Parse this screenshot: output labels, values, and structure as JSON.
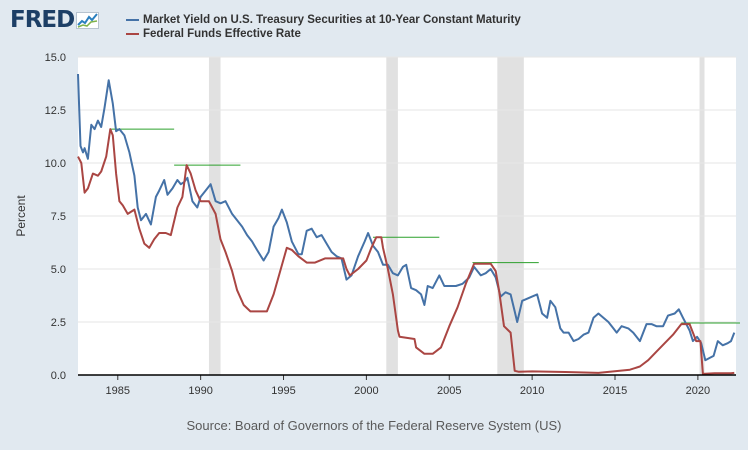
{
  "logo": {
    "text": "FRED",
    "icon": "line-chart-icon"
  },
  "legend": [
    {
      "label": "Market Yield on U.S. Treasury Securities at 10-Year Constant Maturity",
      "color": "#4572a7"
    },
    {
      "label": "Federal Funds Effective Rate",
      "color": "#aa4643"
    }
  ],
  "source": "Source: Board of Governors of the Federal Reserve System (US)",
  "colors": {
    "background": "#e1e9f0",
    "plot": "#ffffff",
    "recession": "#e1e1e1",
    "grid": "#e6e6e6",
    "trendline": "#2ca02c"
  },
  "chart_data": {
    "type": "line",
    "title": "",
    "xlabel": "",
    "ylabel": "Percent",
    "xlim": [
      1982.6,
      2022.3
    ],
    "ylim": [
      0,
      15
    ],
    "yticks": [
      "0.0",
      "2.5",
      "5.0",
      "7.5",
      "10.0",
      "12.5",
      "15.0"
    ],
    "xticks": [
      "1985",
      "1990",
      "1995",
      "2000",
      "2005",
      "2010",
      "2015",
      "2020"
    ],
    "grid": "horizontal",
    "legend_position": "top",
    "recessions": [
      [
        1990.5,
        1991.2
      ],
      [
        2001.2,
        2001.9
      ],
      [
        2007.9,
        2009.5
      ],
      [
        2020.1,
        2020.4
      ]
    ],
    "annotations": [
      {
        "x_start": 1984.6,
        "x_end": 1988.4,
        "y": 11.6
      },
      {
        "x_start": 1988.4,
        "x_end": 1992.4,
        "y": 9.9
      },
      {
        "x_start": 2000.4,
        "x_end": 2004.4,
        "y": 6.5
      },
      {
        "x_start": 2006.4,
        "x_end": 2010.4,
        "y": 5.3
      },
      {
        "x_start": 2019.0,
        "x_end": 2022.7,
        "y": 2.45
      }
    ],
    "series": [
      {
        "name": "Market Yield on U.S. Treasury Securities at 10-Year Constant Maturity",
        "color": "#4572a7",
        "x": [
          1982.6,
          1982.75,
          1982.9,
          1983.0,
          1983.2,
          1983.4,
          1983.6,
          1983.8,
          1984.0,
          1984.2,
          1984.45,
          1984.7,
          1984.9,
          1985.1,
          1985.4,
          1985.7,
          1986.0,
          1986.2,
          1986.4,
          1986.7,
          1987.0,
          1987.3,
          1987.5,
          1987.8,
          1988.0,
          1988.3,
          1988.6,
          1988.8,
          1989.0,
          1989.2,
          1989.5,
          1989.8,
          1990.0,
          1990.3,
          1990.6,
          1990.9,
          1991.2,
          1991.5,
          1991.9,
          1992.2,
          1992.5,
          1992.8,
          1993.1,
          1993.4,
          1993.8,
          1994.1,
          1994.4,
          1994.7,
          1994.9,
          1995.2,
          1995.5,
          1995.9,
          1996.1,
          1996.4,
          1996.7,
          1997.0,
          1997.3,
          1997.6,
          1997.9,
          1998.2,
          1998.5,
          1998.8,
          1999.1,
          1999.5,
          1999.9,
          2000.1,
          2000.4,
          2000.7,
          2001.0,
          2001.3,
          2001.6,
          2001.9,
          2002.2,
          2002.4,
          2002.7,
          2003.0,
          2003.3,
          2003.5,
          2003.7,
          2004.0,
          2004.4,
          2004.7,
          2005.0,
          2005.4,
          2005.8,
          2006.2,
          2006.5,
          2006.9,
          2007.2,
          2007.5,
          2007.8,
          2008.1,
          2008.4,
          2008.7,
          2008.95,
          2009.1,
          2009.4,
          2009.7,
          2010.0,
          2010.3,
          2010.6,
          2010.9,
          2011.1,
          2011.4,
          2011.7,
          2011.9,
          2012.2,
          2012.5,
          2012.8,
          2013.1,
          2013.4,
          2013.7,
          2014.0,
          2014.3,
          2014.6,
          2014.9,
          2015.1,
          2015.4,
          2015.8,
          2016.1,
          2016.5,
          2016.9,
          2017.2,
          2017.5,
          2017.9,
          2018.2,
          2018.6,
          2018.85,
          2019.1,
          2019.5,
          2019.7,
          2019.95,
          2020.2,
          2020.45,
          2020.7,
          2020.95,
          2021.2,
          2021.5,
          2021.8,
          2022.0,
          2022.2
        ],
        "y": [
          14.2,
          10.8,
          10.5,
          10.7,
          10.2,
          11.8,
          11.6,
          12.0,
          11.7,
          12.6,
          13.9,
          12.8,
          11.5,
          11.6,
          11.3,
          10.5,
          9.4,
          7.9,
          7.3,
          7.6,
          7.1,
          8.4,
          8.7,
          9.2,
          8.5,
          8.8,
          9.2,
          9.0,
          9.1,
          9.3,
          8.2,
          7.9,
          8.4,
          8.7,
          9.0,
          8.2,
          8.1,
          8.2,
          7.6,
          7.3,
          7.0,
          6.6,
          6.3,
          5.9,
          5.4,
          5.8,
          7.0,
          7.4,
          7.8,
          7.2,
          6.3,
          5.7,
          5.7,
          6.8,
          6.9,
          6.5,
          6.6,
          6.2,
          5.8,
          5.6,
          5.5,
          4.5,
          4.7,
          5.6,
          6.3,
          6.7,
          6.1,
          5.8,
          5.2,
          5.2,
          4.8,
          4.7,
          5.1,
          5.2,
          4.1,
          4.0,
          3.8,
          3.3,
          4.2,
          4.1,
          4.7,
          4.2,
          4.2,
          4.2,
          4.3,
          4.6,
          5.1,
          4.7,
          4.8,
          5.0,
          4.6,
          3.7,
          3.9,
          3.8,
          3.0,
          2.5,
          3.5,
          3.6,
          3.7,
          3.8,
          2.9,
          2.7,
          3.5,
          3.2,
          2.2,
          2.0,
          2.0,
          1.6,
          1.7,
          1.9,
          2.0,
          2.7,
          2.9,
          2.7,
          2.5,
          2.2,
          2.0,
          2.3,
          2.2,
          2.0,
          1.6,
          2.4,
          2.4,
          2.3,
          2.3,
          2.8,
          2.9,
          3.1,
          2.7,
          2.1,
          1.6,
          1.8,
          1.5,
          0.7,
          0.8,
          0.9,
          1.6,
          1.4,
          1.5,
          1.6,
          2.0
        ]
      },
      {
        "name": "Federal Funds Effective Rate",
        "color": "#aa4643",
        "x": [
          1982.6,
          1982.8,
          1983.0,
          1983.2,
          1983.5,
          1983.8,
          1984.0,
          1984.3,
          1984.55,
          1984.7,
          1984.9,
          1985.1,
          1985.3,
          1985.6,
          1986.0,
          1986.3,
          1986.6,
          1986.9,
          1987.2,
          1987.5,
          1987.9,
          1988.2,
          1988.6,
          1988.9,
          1989.15,
          1989.4,
          1989.7,
          1990.0,
          1990.5,
          1990.9,
          1991.2,
          1991.5,
          1991.9,
          1992.2,
          1992.6,
          1993.0,
          1993.5,
          1994.0,
          1994.4,
          1994.8,
          1995.2,
          1995.5,
          1995.9,
          1996.4,
          1996.9,
          1997.5,
          1998.0,
          1998.6,
          1998.8,
          1999.0,
          1999.5,
          2000.0,
          2000.3,
          2000.6,
          2000.9,
          2001.0,
          2001.3,
          2001.6,
          2001.9,
          2002.0,
          2002.9,
          2003.0,
          2003.5,
          2004.0,
          2004.5,
          2005.0,
          2005.5,
          2006.0,
          2006.5,
          2007.0,
          2007.5,
          2007.8,
          2008.0,
          2008.3,
          2008.7,
          2008.95,
          2009.2,
          2010.0,
          2012.0,
          2014.0,
          2015.9,
          2016.5,
          2017.0,
          2017.5,
          2018.0,
          2018.5,
          2019.0,
          2019.5,
          2019.7,
          2019.9,
          2020.15,
          2020.3,
          2021.0,
          2022.0,
          2022.2
        ],
        "y": [
          10.3,
          10.0,
          8.6,
          8.8,
          9.5,
          9.4,
          9.6,
          10.3,
          11.6,
          11.3,
          9.5,
          8.2,
          8.0,
          7.6,
          7.8,
          6.9,
          6.2,
          6.0,
          6.4,
          6.7,
          6.7,
          6.6,
          7.9,
          8.4,
          9.9,
          9.5,
          8.7,
          8.2,
          8.2,
          7.6,
          6.4,
          5.8,
          4.9,
          4.0,
          3.3,
          3.0,
          3.0,
          3.0,
          3.8,
          4.9,
          6.0,
          5.9,
          5.6,
          5.3,
          5.3,
          5.5,
          5.5,
          5.5,
          5.0,
          4.7,
          5.0,
          5.4,
          6.0,
          6.5,
          6.5,
          6.0,
          5.0,
          3.8,
          2.1,
          1.8,
          1.7,
          1.3,
          1.0,
          1.0,
          1.3,
          2.3,
          3.2,
          4.3,
          5.25,
          5.25,
          5.25,
          4.9,
          4.0,
          2.3,
          2.0,
          0.2,
          0.15,
          0.17,
          0.14,
          0.1,
          0.25,
          0.4,
          0.7,
          1.1,
          1.5,
          1.9,
          2.4,
          2.4,
          2.0,
          1.6,
          1.6,
          0.05,
          0.08,
          0.08,
          0.1
        ]
      }
    ]
  }
}
